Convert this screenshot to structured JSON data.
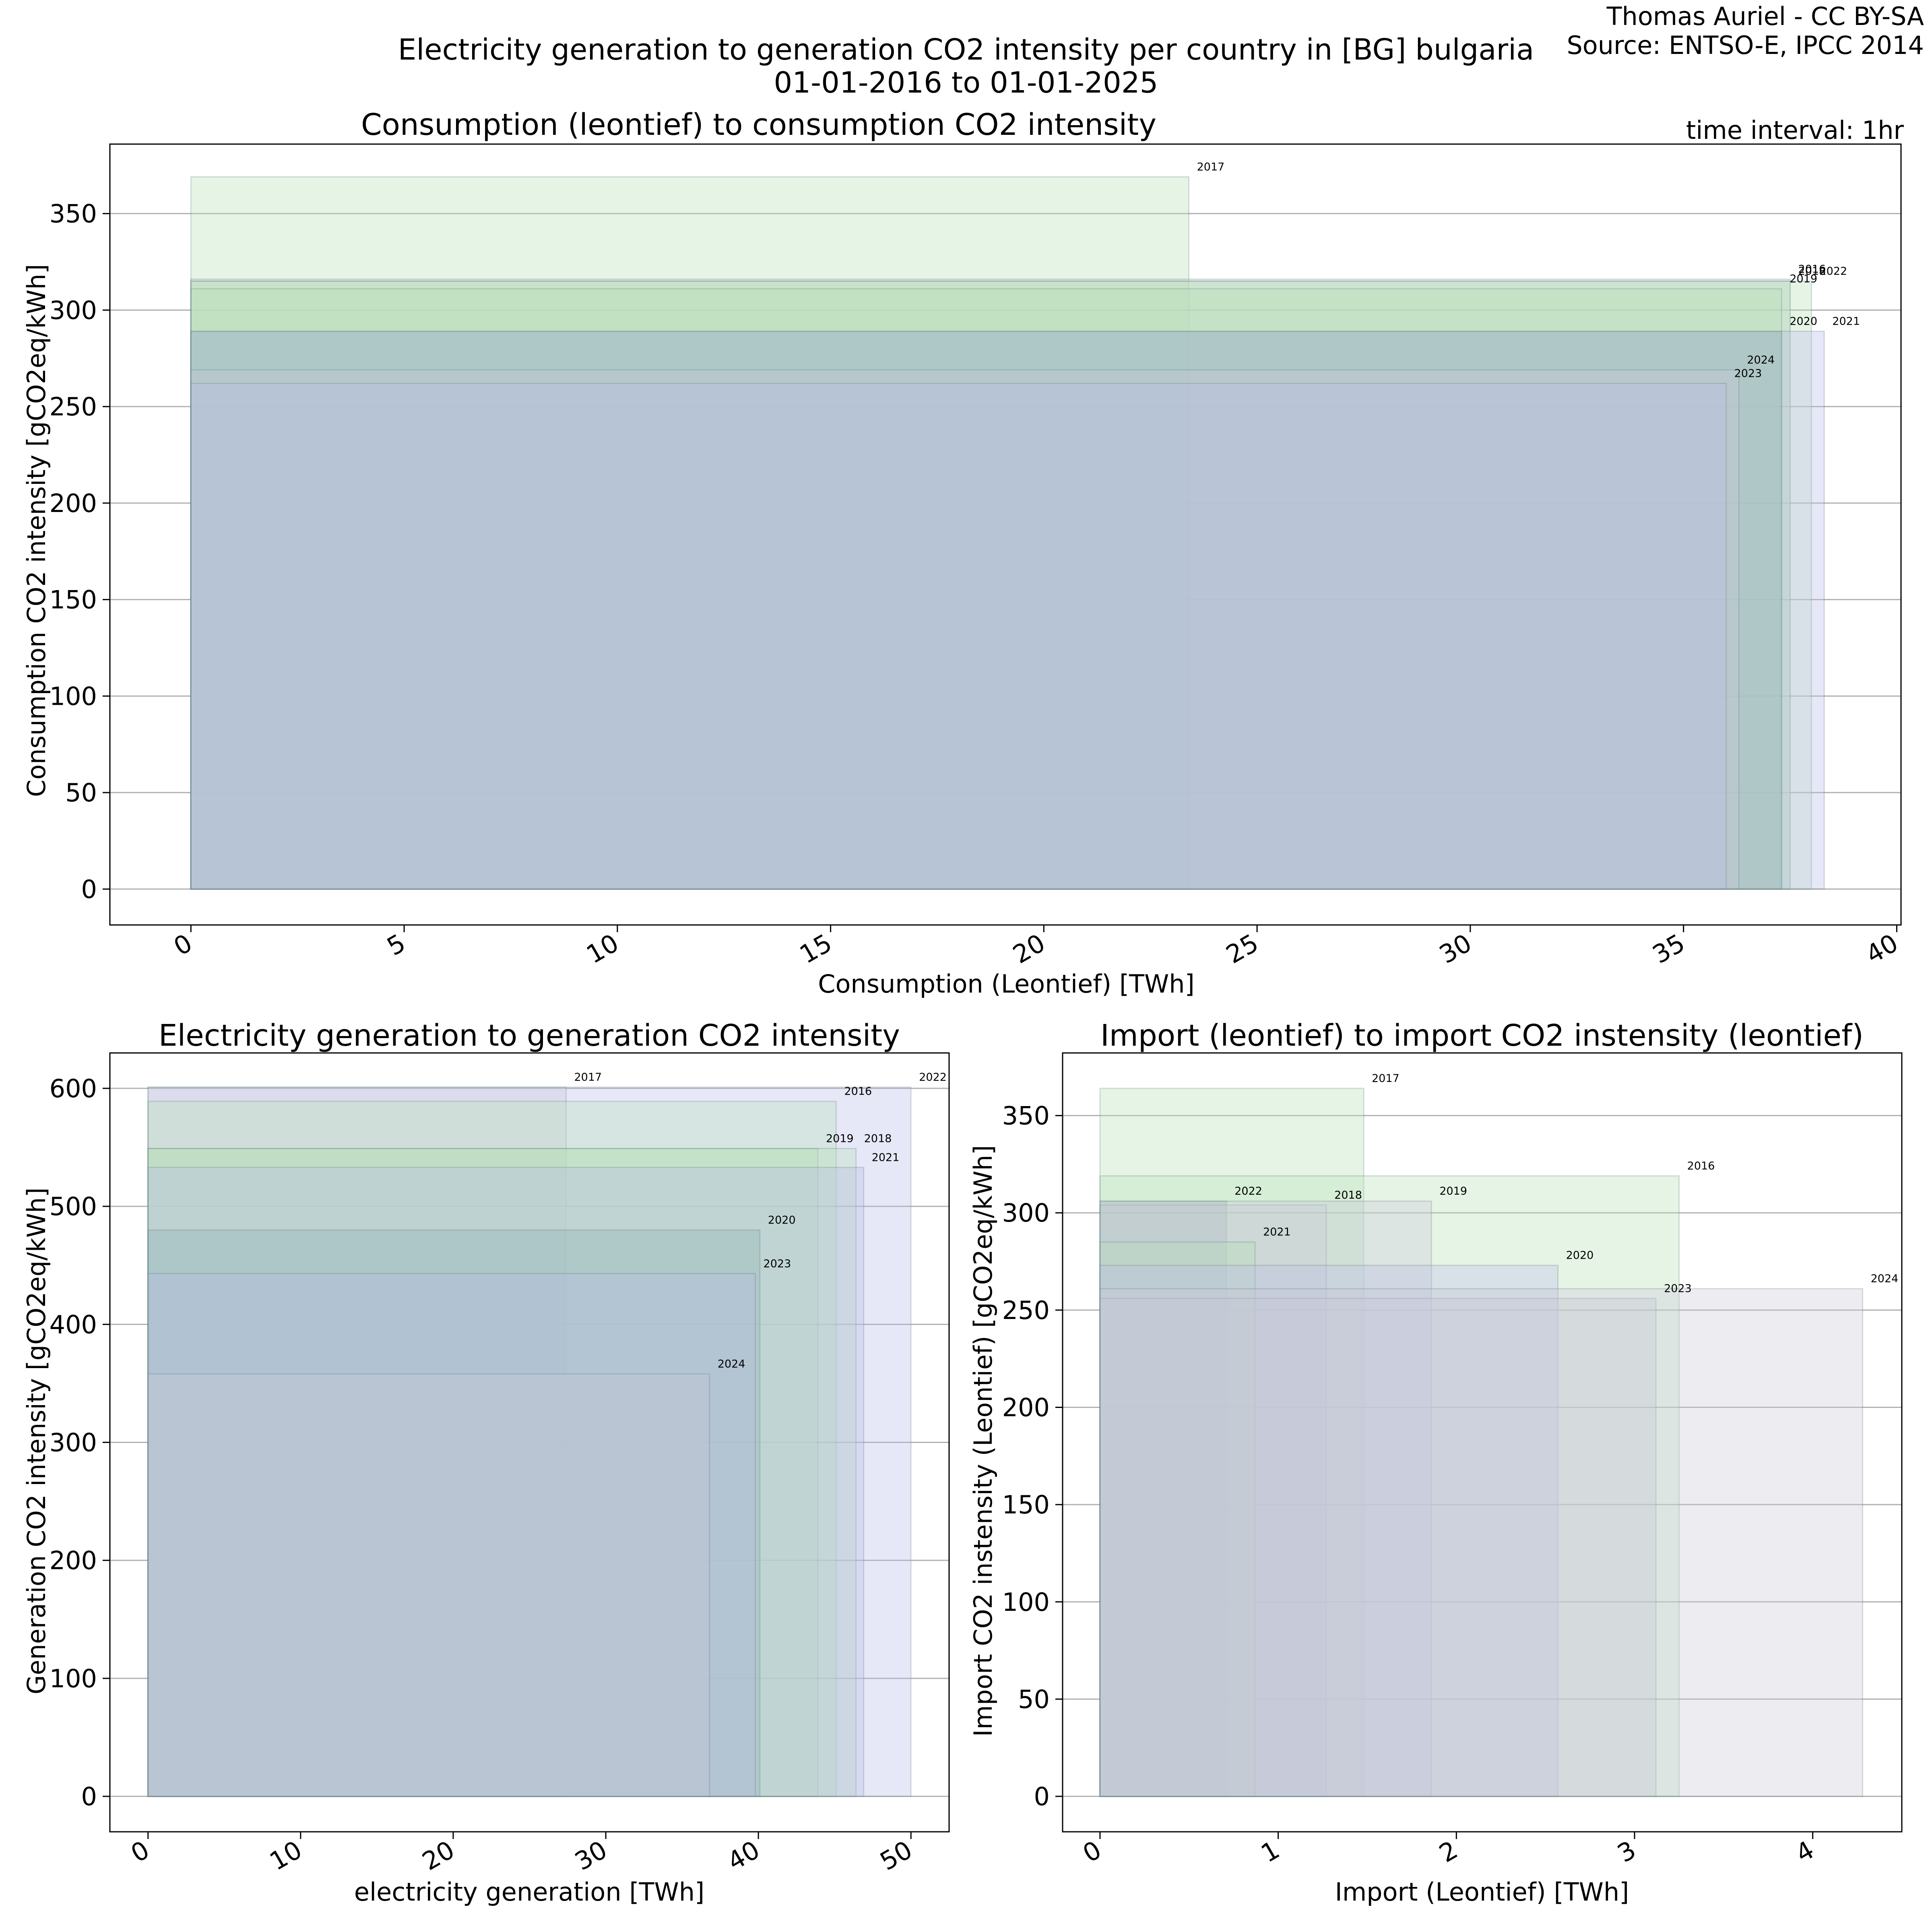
{
  "figure": {
    "title_line1": "Electricity generation to generation CO2 intensity per country in [BG] bulgaria",
    "title_line2": "01-01-2016 to 01-01-2025",
    "credit_author": "Thomas Auriel - CC BY-SA",
    "credit_source": "Source: ENTSO-E, IPCC 2014",
    "time_interval": "time interval: 1hr"
  },
  "colors": {
    "fill_green": "#b8dfb8",
    "fill_blue": "#b9bde8",
    "fill_grey": "#c9c9d6",
    "fill_teal": "#8fb1b4",
    "stroke": "#5a7a7a",
    "grid": "#b0b0b0"
  },
  "chart_data": [
    {
      "id": "consumption",
      "type": "bar",
      "subtype": "variable-width rectangles starting at x=0",
      "title": "Consumption (leontief) to consumption CO2 intensity",
      "xlabel": "Consumption (Leontief) [TWh]",
      "ylabel": "Consumption CO2 intensity [gCO2eq/kWh]",
      "xlim": [
        -1.9,
        40.1
      ],
      "ylim": [
        -18.6,
        386
      ],
      "xticks": [
        0,
        5,
        10,
        15,
        20,
        25,
        30,
        35,
        40
      ],
      "yticks": [
        0,
        50,
        100,
        150,
        200,
        250,
        300,
        350
      ],
      "grid": "y",
      "series": [
        {
          "name": "2017",
          "x": 23.4,
          "y": 369,
          "color": "green"
        },
        {
          "name": "2016",
          "x": 37.5,
          "y": 316,
          "color": "grey"
        },
        {
          "name": "2018",
          "x": 37.5,
          "y": 315,
          "color": "green"
        },
        {
          "name": "2022",
          "x": 38.0,
          "y": 315,
          "color": "green"
        },
        {
          "name": "2019",
          "x": 37.3,
          "y": 311,
          "color": "green"
        },
        {
          "name": "2021",
          "x": 38.3,
          "y": 289,
          "color": "blue"
        },
        {
          "name": "2020",
          "x": 37.3,
          "y": 289,
          "color": "teal"
        },
        {
          "name": "2024",
          "x": 36.3,
          "y": 269,
          "color": "grey"
        },
        {
          "name": "2023",
          "x": 36.0,
          "y": 262,
          "color": "blue"
        }
      ]
    },
    {
      "id": "generation",
      "type": "bar",
      "subtype": "variable-width rectangles starting at x=0",
      "title": "Electricity generation to generation CO2 intensity",
      "xlabel": "electricity generation [TWh]",
      "ylabel": "Generation CO2 intensity [gCO2eq/kWh]",
      "xlim": [
        -2.5,
        52.5
      ],
      "ylim": [
        -30,
        630
      ],
      "xticks": [
        0,
        10,
        20,
        30,
        40,
        50
      ],
      "yticks": [
        0,
        100,
        200,
        300,
        400,
        500,
        600
      ],
      "grid": "y",
      "series": [
        {
          "name": "2022",
          "x": 50.0,
          "y": 601,
          "color": "blue"
        },
        {
          "name": "2017",
          "x": 27.4,
          "y": 601,
          "color": "grey"
        },
        {
          "name": "2016",
          "x": 45.1,
          "y": 589,
          "color": "green"
        },
        {
          "name": "2019",
          "x": 43.9,
          "y": 549,
          "color": "green"
        },
        {
          "name": "2018",
          "x": 46.4,
          "y": 549,
          "color": "green"
        },
        {
          "name": "2021",
          "x": 46.9,
          "y": 533,
          "color": "blue"
        },
        {
          "name": "2020",
          "x": 40.1,
          "y": 480,
          "color": "teal"
        },
        {
          "name": "2023",
          "x": 39.8,
          "y": 443,
          "color": "blue"
        },
        {
          "name": "2024",
          "x": 36.8,
          "y": 358,
          "color": "grey"
        }
      ]
    },
    {
      "id": "import",
      "type": "bar",
      "subtype": "variable-width rectangles starting at x=0",
      "title": "Import (leontief) to import CO2 instensity (leontief)",
      "xlabel": "Import (Leontief) [TWh]",
      "ylabel": "Import CO2 instensity (Leontief) [gCO2eq/kWh]",
      "xlim": [
        -0.21,
        4.5
      ],
      "ylim": [
        -18.2,
        382.2
      ],
      "xticks": [
        0,
        1,
        2,
        3,
        4
      ],
      "yticks": [
        0,
        50,
        100,
        150,
        200,
        250,
        300,
        350
      ],
      "grid": "y",
      "series": [
        {
          "name": "2017",
          "x": 1.48,
          "y": 364,
          "color": "green"
        },
        {
          "name": "2016",
          "x": 3.25,
          "y": 319,
          "color": "green"
        },
        {
          "name": "2022",
          "x": 0.71,
          "y": 306,
          "color": "teal"
        },
        {
          "name": "2018",
          "x": 1.27,
          "y": 304,
          "color": "grey"
        },
        {
          "name": "2019",
          "x": 1.86,
          "y": 306,
          "color": "grey"
        },
        {
          "name": "2021",
          "x": 0.87,
          "y": 285,
          "color": "green"
        },
        {
          "name": "2020",
          "x": 2.57,
          "y": 273,
          "color": "blue"
        },
        {
          "name": "2023",
          "x": 3.12,
          "y": 256,
          "color": "grey"
        },
        {
          "name": "2024",
          "x": 4.28,
          "y": 261,
          "color": "grey"
        }
      ]
    }
  ]
}
